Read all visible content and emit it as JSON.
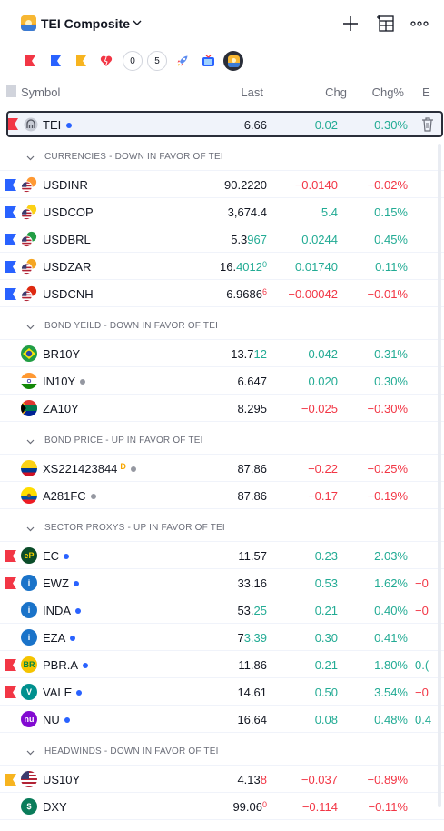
{
  "header": {
    "title": "TEI Composite",
    "icons": [
      "tei-logo-icon",
      "chevron-down-icon",
      "plus-icon",
      "grid-icon",
      "more-icon"
    ]
  },
  "flag_filters": [
    {
      "kind": "flag",
      "color": "#f23645"
    },
    {
      "kind": "flag",
      "color": "#2962ff"
    },
    {
      "kind": "flag",
      "color": "#f7b41f"
    },
    {
      "kind": "heart",
      "color": "#f23645"
    },
    {
      "kind": "number",
      "label": "0"
    },
    {
      "kind": "number",
      "label": "5"
    },
    {
      "kind": "rocket"
    },
    {
      "kind": "tv"
    },
    {
      "kind": "selected"
    }
  ],
  "columns": {
    "symbol": "Symbol",
    "last": "Last",
    "chg": "Chg",
    "chgp": "Chg%",
    "ext": "E"
  },
  "tei": {
    "symbol": "TEI",
    "last": "6.66",
    "chg": "0.02",
    "chgp": "0.30%"
  },
  "sections": [
    {
      "label": "CURRENCIES - DOWN IN FAVOR OF TEI",
      "rows": [
        {
          "symbol": "USDINR",
          "flag": "#2962ff",
          "icon": "us-india-icon",
          "last": "90.2220",
          "last_hi": "",
          "last_sup": "",
          "chg": "−0.0140",
          "chgp": "−0.02%",
          "dir": "neg",
          "dot": "",
          "ext": ""
        },
        {
          "symbol": "USDCOP",
          "flag": "#2962ff",
          "icon": "us-colombia-icon",
          "last": "3,674.4",
          "last_hi": "",
          "last_sup": "",
          "chg": "5.4",
          "chgp": "0.15%",
          "dir": "pos",
          "dot": "",
          "ext": ""
        },
        {
          "symbol": "USDBRL",
          "flag": "#2962ff",
          "icon": "us-brazil-icon",
          "last": "5.3",
          "last_hi": "967",
          "last_sup": "",
          "chg": "0.0244",
          "chgp": "0.45%",
          "dir": "pos",
          "dot": "",
          "ext": ""
        },
        {
          "symbol": "USDZAR",
          "flag": "#2962ff",
          "icon": "us-southafrica-icon",
          "last": "16.",
          "last_hi": "4012",
          "last_sup": "0",
          "chg": "0.01740",
          "chgp": "0.11%",
          "dir": "pos",
          "dot": "",
          "ext": ""
        },
        {
          "symbol": "USDCNH",
          "flag": "#2962ff",
          "icon": "us-china-icon",
          "last": "6.9686",
          "last_hi": "",
          "last_sup": "6",
          "chg": "−0.00042",
          "chgp": "−0.01%",
          "dir": "neg",
          "dot": "",
          "ext": ""
        }
      ]
    },
    {
      "label": "BOND YEILD - DOWN IN FAVOR OF TEI",
      "rows": [
        {
          "symbol": "BR10Y",
          "flag": "",
          "icon": "brazil-flag-icon",
          "last": "13.7",
          "last_hi": "12",
          "last_sup": "",
          "chg": "0.042",
          "chgp": "0.31%",
          "dir": "pos",
          "dot": "",
          "ext": ""
        },
        {
          "symbol": "IN10Y",
          "flag": "",
          "icon": "india-flag-icon",
          "last": "6.647",
          "last_hi": "",
          "last_sup": "",
          "chg": "0.020",
          "chgp": "0.30%",
          "dir": "pos",
          "dot": "gray",
          "ext": ""
        },
        {
          "symbol": "ZA10Y",
          "flag": "",
          "icon": "southafrica-flag-icon",
          "last": "8.295",
          "last_hi": "",
          "last_sup": "",
          "chg": "−0.025",
          "chgp": "−0.30%",
          "dir": "neg",
          "dot": "",
          "ext": ""
        }
      ]
    },
    {
      "label": "BOND PRICE - UP IN FAVOR OF TEI",
      "rows": [
        {
          "symbol": "XS221423844",
          "flag": "",
          "icon": "colombia-flag-icon",
          "sym_sup": "D",
          "last": "87.86",
          "last_hi": "",
          "last_sup": "",
          "chg": "−0.22",
          "chgp": "−0.25%",
          "dir": "neg",
          "dot": "gray",
          "ext": ""
        },
        {
          "symbol": "A281FC",
          "flag": "",
          "icon": "ecuador-flag-icon",
          "last": "87.86",
          "last_hi": "",
          "last_sup": "",
          "chg": "−0.17",
          "chgp": "−0.19%",
          "dir": "neg",
          "dot": "gray",
          "ext": ""
        }
      ]
    },
    {
      "label": "SECTOR PROXYS - UP IN FAVOR OF TEI",
      "rows": [
        {
          "symbol": "EC",
          "flag": "#f23645",
          "icon": "ecopetrol-icon",
          "icon_text": "eP",
          "last": "11.57",
          "last_hi": "",
          "last_sup": "",
          "chg": "0.23",
          "chgp": "2.03%",
          "dir": "pos",
          "dot": "blue",
          "ext": ""
        },
        {
          "symbol": "EWZ",
          "flag": "#f23645",
          "icon": "ishares-icon",
          "icon_text": "i",
          "last": "33.16",
          "last_hi": "",
          "last_sup": "",
          "chg": "0.53",
          "chgp": "1.62%",
          "dir": "pos",
          "dot": "blue",
          "ext": "−0"
        },
        {
          "symbol": "INDA",
          "flag": "",
          "icon": "ishares-icon",
          "icon_text": "i",
          "last": "53.",
          "last_hi": "25",
          "last_sup": "",
          "chg": "0.21",
          "chgp": "0.40%",
          "dir": "pos",
          "dot": "blue",
          "ext": "−0"
        },
        {
          "symbol": "EZA",
          "flag": "",
          "icon": "ishares-icon",
          "icon_text": "i",
          "last": "7",
          "last_hi": "3.39",
          "last_sup": "",
          "chg": "0.30",
          "chgp": "0.41%",
          "dir": "pos",
          "dot": "blue",
          "ext": ""
        },
        {
          "symbol": "PBR.A",
          "flag": "#f23645",
          "icon": "petrobras-icon",
          "icon_text": "BR",
          "last": "11.86",
          "last_hi": "",
          "last_sup": "",
          "chg": "0.21",
          "chgp": "1.80%",
          "dir": "pos",
          "dot": "blue",
          "ext": "0.("
        },
        {
          "symbol": "VALE",
          "flag": "#f23645",
          "icon": "vale-icon",
          "icon_text": "V",
          "last": "14.61",
          "last_hi": "",
          "last_sup": "",
          "chg": "0.50",
          "chgp": "3.54%",
          "dir": "pos",
          "dot": "blue",
          "ext": "−0"
        },
        {
          "symbol": "NU",
          "flag": "",
          "icon": "nubank-icon",
          "icon_text": "nu",
          "last": "16.64",
          "last_hi": "",
          "last_sup": "",
          "chg": "0.08",
          "chgp": "0.48%",
          "dir": "pos",
          "dot": "blue",
          "ext": "0.4"
        }
      ]
    },
    {
      "label": "HEADWINDS - DOWN IN FAVOR OF TEI",
      "rows": [
        {
          "symbol": "US10Y",
          "flag": "#f7b41f",
          "icon": "us-flag-icon",
          "last": "4.13",
          "last_hi": "8",
          "last_sup": "",
          "chg": "−0.037",
          "chgp": "−0.89%",
          "dir": "neg",
          "dot": "",
          "ext": ""
        },
        {
          "symbol": "DXY",
          "flag": "",
          "icon": "dollar-icon",
          "icon_text": "$",
          "last": "99.06",
          "last_hi": "",
          "last_sup": "0",
          "chg": "−0.114",
          "chgp": "−0.11%",
          "dir": "neg",
          "dot": "",
          "ext": ""
        }
      ]
    }
  ]
}
